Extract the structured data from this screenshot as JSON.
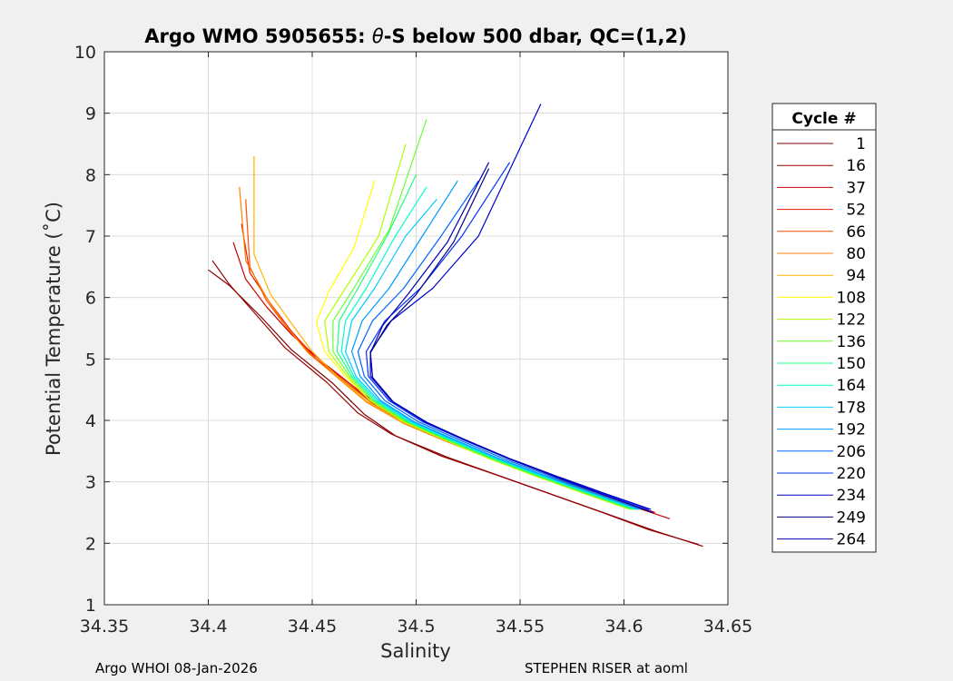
{
  "chart_data": {
    "type": "line",
    "title_prefix": "Argo WMO 5905655: ",
    "title_theta": "θ",
    "title_suffix": "-S below 500 dbar,  QC=(1,2)",
    "xlabel": "Salinity",
    "ylabel": "Potential Temperature (˚C)",
    "xlim": [
      34.35,
      34.65
    ],
    "ylim": [
      1,
      10
    ],
    "xticks": [
      34.35,
      34.4,
      34.45,
      34.5,
      34.55,
      34.6,
      34.65
    ],
    "xtick_labels": [
      "34.35",
      "34.4",
      "34.45",
      "34.5",
      "34.55",
      "34.6",
      "34.65"
    ],
    "yticks": [
      1,
      2,
      3,
      4,
      5,
      6,
      7,
      8,
      9,
      10
    ],
    "ytick_labels": [
      "1",
      "2",
      "3",
      "4",
      "5",
      "6",
      "7",
      "8",
      "9",
      "10"
    ],
    "grid": true,
    "legend_title": "Cycle #",
    "legend_position": "outside-right",
    "series": [
      {
        "name": "1",
        "color": "#800000",
        "x": [
          34.638,
          34.615,
          34.59,
          34.565,
          34.54,
          34.515,
          34.49,
          34.475,
          34.46,
          34.44,
          34.425,
          34.41,
          34.4
        ],
        "y": [
          1.95,
          2.2,
          2.5,
          2.8,
          3.1,
          3.4,
          3.75,
          4.1,
          4.6,
          5.15,
          5.7,
          6.2,
          6.45
        ]
      },
      {
        "name": "16",
        "color": "#990000",
        "x": [
          34.636,
          34.612,
          34.588,
          34.563,
          34.538,
          34.512,
          34.488,
          34.472,
          34.457,
          34.437,
          34.423,
          34.41,
          34.402
        ],
        "y": [
          1.98,
          2.22,
          2.52,
          2.82,
          3.12,
          3.42,
          3.78,
          4.12,
          4.62,
          5.18,
          5.72,
          6.22,
          6.6
        ]
      },
      {
        "name": "37",
        "color": "#cc0000",
        "x": [
          34.622,
          34.6,
          34.578,
          34.553,
          34.528,
          34.505,
          34.486,
          34.47,
          34.455,
          34.44,
          34.428,
          34.418,
          34.412
        ],
        "y": [
          2.4,
          2.65,
          2.92,
          3.2,
          3.5,
          3.8,
          4.15,
          4.55,
          4.95,
          5.4,
          5.85,
          6.3,
          6.9
        ]
      },
      {
        "name": "52",
        "color": "#e61a00",
        "x": [
          34.615,
          34.592,
          34.57,
          34.546,
          34.522,
          34.5,
          34.482,
          34.468,
          34.452,
          34.44,
          34.43,
          34.42,
          34.416
        ],
        "y": [
          2.5,
          2.75,
          3.0,
          3.28,
          3.58,
          3.88,
          4.2,
          4.6,
          5.0,
          5.45,
          5.9,
          6.4,
          7.2
        ]
      },
      {
        "name": "66",
        "color": "#ff4d00",
        "x": [
          34.61,
          34.588,
          34.565,
          34.542,
          34.52,
          34.498,
          34.48,
          34.465,
          34.45,
          34.438,
          34.428,
          34.42,
          34.418
        ],
        "y": [
          2.55,
          2.8,
          3.05,
          3.32,
          3.62,
          3.92,
          4.25,
          4.65,
          5.05,
          5.5,
          5.95,
          6.5,
          7.6
        ]
      },
      {
        "name": "80",
        "color": "#ff8000",
        "x": [
          34.606,
          34.584,
          34.56,
          34.538,
          34.515,
          34.494,
          34.476,
          34.462,
          34.448,
          34.437,
          34.428,
          34.418,
          34.415
        ],
        "y": [
          2.55,
          2.8,
          3.08,
          3.35,
          3.65,
          3.95,
          4.3,
          4.7,
          5.1,
          5.55,
          6.0,
          6.6,
          7.8
        ]
      },
      {
        "name": "94",
        "color": "#ffb300",
        "x": [
          34.604,
          34.582,
          34.558,
          34.536,
          34.514,
          34.493,
          34.476,
          34.462,
          34.45,
          34.44,
          34.43,
          34.422,
          34.422
        ],
        "y": [
          2.55,
          2.82,
          3.1,
          3.38,
          3.68,
          3.98,
          4.32,
          4.72,
          5.12,
          5.58,
          6.05,
          6.7,
          8.3
        ]
      },
      {
        "name": "108",
        "color": "#ffff00",
        "x": [
          34.603,
          34.58,
          34.557,
          34.535,
          34.514,
          34.494,
          34.478,
          34.466,
          34.456,
          34.452,
          34.458,
          34.47,
          34.48
        ],
        "y": [
          2.55,
          2.82,
          3.1,
          3.38,
          3.68,
          3.98,
          4.32,
          4.72,
          5.12,
          5.6,
          6.1,
          6.8,
          7.9
        ]
      },
      {
        "name": "122",
        "color": "#b3ff00",
        "x": [
          34.603,
          34.58,
          34.557,
          34.535,
          34.514,
          34.494,
          34.478,
          34.467,
          34.458,
          34.456,
          34.466,
          34.482,
          34.495
        ],
        "y": [
          2.55,
          2.82,
          3.1,
          3.38,
          3.68,
          3.98,
          4.32,
          4.72,
          5.12,
          5.62,
          6.15,
          7.0,
          8.5
        ]
      },
      {
        "name": "136",
        "color": "#66ff33",
        "x": [
          34.604,
          34.581,
          34.558,
          34.536,
          34.515,
          34.495,
          34.479,
          34.468,
          34.46,
          34.46,
          34.47,
          34.487,
          34.505
        ],
        "y": [
          2.55,
          2.82,
          3.1,
          3.38,
          3.68,
          3.98,
          4.32,
          4.72,
          5.12,
          5.62,
          6.15,
          7.1,
          8.9
        ]
      },
      {
        "name": "150",
        "color": "#1aff80",
        "x": [
          34.605,
          34.582,
          34.559,
          34.537,
          34.516,
          34.496,
          34.48,
          34.469,
          34.462,
          34.463,
          34.472,
          34.486,
          34.5
        ],
        "y": [
          2.55,
          2.82,
          3.1,
          3.38,
          3.68,
          3.98,
          4.32,
          4.72,
          5.12,
          5.62,
          6.15,
          7.0,
          8.0
        ]
      },
      {
        "name": "164",
        "color": "#00ffcc",
        "x": [
          34.606,
          34.583,
          34.56,
          34.538,
          34.517,
          34.497,
          34.481,
          34.47,
          34.464,
          34.466,
          34.476,
          34.49,
          34.505
        ],
        "y": [
          2.55,
          2.82,
          3.1,
          3.38,
          3.68,
          3.98,
          4.32,
          4.72,
          5.12,
          5.62,
          6.15,
          7.0,
          7.8
        ]
      },
      {
        "name": "178",
        "color": "#00ccff",
        "x": [
          34.607,
          34.584,
          34.561,
          34.539,
          34.518,
          34.498,
          34.482,
          34.471,
          34.466,
          34.469,
          34.48,
          34.495,
          34.51
        ],
        "y": [
          2.55,
          2.82,
          3.1,
          3.38,
          3.68,
          3.98,
          4.32,
          4.72,
          5.12,
          5.62,
          6.15,
          7.0,
          7.6
        ]
      },
      {
        "name": "192",
        "color": "#0099ff",
        "x": [
          34.608,
          34.585,
          34.562,
          34.54,
          34.519,
          34.499,
          34.483,
          34.473,
          34.469,
          34.474,
          34.487,
          34.503,
          34.52
        ],
        "y": [
          2.55,
          2.82,
          3.1,
          3.38,
          3.68,
          3.98,
          4.32,
          4.72,
          5.12,
          5.62,
          6.15,
          7.0,
          7.9
        ]
      },
      {
        "name": "206",
        "color": "#0066ff",
        "x": [
          34.61,
          34.587,
          34.564,
          34.542,
          34.521,
          34.501,
          34.485,
          34.475,
          34.472,
          34.479,
          34.494,
          34.512,
          34.53
        ],
        "y": [
          2.55,
          2.82,
          3.1,
          3.38,
          3.68,
          3.98,
          4.32,
          4.72,
          5.12,
          5.62,
          6.15,
          7.0,
          7.9
        ]
      },
      {
        "name": "220",
        "color": "#0033ff",
        "x": [
          34.612,
          34.589,
          34.566,
          34.544,
          34.523,
          34.503,
          34.487,
          34.477,
          34.476,
          34.485,
          34.502,
          34.522,
          34.545
        ],
        "y": [
          2.55,
          2.82,
          3.1,
          3.38,
          3.68,
          3.98,
          4.32,
          4.72,
          5.12,
          5.62,
          6.15,
          7.0,
          8.2
        ]
      },
      {
        "name": "234",
        "color": "#0000cc",
        "x": [
          34.613,
          34.59,
          34.567,
          34.545,
          34.524,
          34.504,
          34.488,
          34.478,
          34.478,
          34.488,
          34.508,
          34.53,
          34.56
        ],
        "y": [
          2.55,
          2.82,
          3.1,
          3.38,
          3.68,
          3.98,
          4.32,
          4.72,
          5.12,
          5.62,
          6.15,
          7.0,
          9.15
        ]
      },
      {
        "name": "249",
        "color": "#000080",
        "x": [
          34.614,
          34.591,
          34.568,
          34.546,
          34.525,
          34.505,
          34.489,
          34.479,
          34.478,
          34.486,
          34.5,
          34.518,
          34.535
        ],
        "y": [
          2.5,
          2.78,
          3.07,
          3.36,
          3.66,
          3.97,
          4.3,
          4.7,
          5.1,
          5.55,
          6.05,
          6.9,
          8.1
        ]
      },
      {
        "name": "264",
        "color": "#0000b3",
        "x": [
          34.614,
          34.591,
          34.568,
          34.546,
          34.525,
          34.505,
          34.489,
          34.479,
          34.478,
          34.484,
          34.496,
          34.515,
          34.535
        ],
        "y": [
          2.5,
          2.78,
          3.07,
          3.36,
          3.66,
          3.97,
          4.3,
          4.7,
          5.1,
          5.55,
          6.05,
          6.9,
          8.2
        ]
      }
    ]
  },
  "footer": {
    "left": "Argo WHOI 08-Jan-2026",
    "right": "STEPHEN RISER at aoml"
  }
}
